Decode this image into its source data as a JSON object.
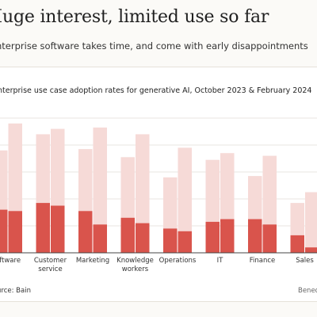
{
  "header": {
    "title": "Huge interest, limited use so far",
    "subtitle": "nterprise software takes time, and come with early disappointments"
  },
  "footer": {
    "source": "urce: Bain",
    "credit": "Bened"
  },
  "colors": {
    "dark_bar": "#d9544c",
    "light_bar": "#f6dad7",
    "gridline": "#e9e6e2",
    "baseline": "#444444",
    "background": "#fbfaf7"
  },
  "chart_data": {
    "type": "bar",
    "title": "nterprise use case adoption rates for generative AI, October 2023 & February 2024",
    "categories": [
      [
        "oftware"
      ],
      [
        "Customer",
        "service"
      ],
      [
        "Marketing"
      ],
      [
        "Knowledge",
        "workers"
      ],
      [
        "Operations"
      ],
      [
        "IT"
      ],
      [
        "Finance"
      ],
      [
        "Sales"
      ]
    ],
    "series_groups": [
      {
        "period": "October 2023",
        "total": [
          0.76,
          0.88,
          0.77,
          0.71,
          0.56,
          0.69,
          0.57,
          0.37
        ],
        "in_use": [
          0.32,
          0.37,
          0.31,
          0.26,
          0.18,
          0.23,
          0.25,
          0.13
        ]
      },
      {
        "period": "February 2024",
        "total": [
          0.96,
          0.92,
          0.93,
          0.88,
          0.78,
          0.74,
          0.72,
          0.45
        ],
        "in_use": [
          0.31,
          0.35,
          0.21,
          0.22,
          0.16,
          0.25,
          0.21,
          0.04
        ]
      }
    ],
    "ylim": [
      0,
      1
    ],
    "grid": true
  }
}
